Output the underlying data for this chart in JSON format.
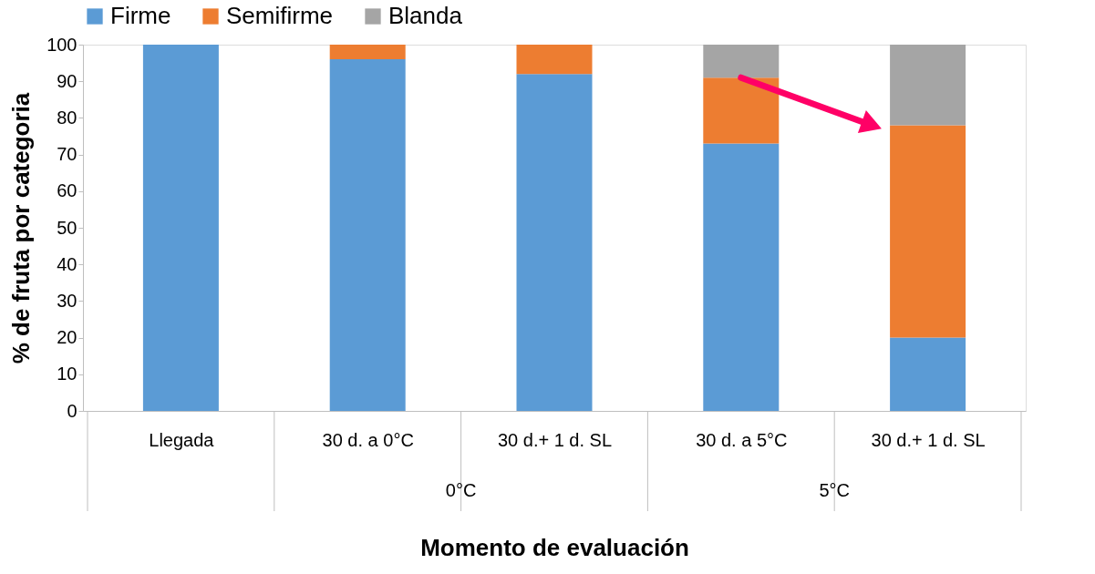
{
  "chart_data": {
    "type": "bar",
    "stacked": true,
    "xlabel": "Momento de evaluación",
    "ylabel": "% de fruta por categoria",
    "categories": [
      "Llegada",
      "30 d. a 0°C",
      "30 d.+ 1 d. SL",
      "30 d. a 5°C",
      "30 d.+ 1 d. SL"
    ],
    "series": [
      {
        "name": "Firme",
        "color": "#5b9bd5",
        "values": [
          100,
          96,
          92,
          73,
          20
        ]
      },
      {
        "name": "Semifirme",
        "color": "#ed7d31",
        "values": [
          0,
          4,
          8,
          18,
          58
        ]
      },
      {
        "name": "Blanda",
        "color": "#a5a5a5",
        "values": [
          0,
          0,
          0,
          9,
          22
        ]
      }
    ],
    "ylim": [
      0,
      100
    ],
    "yticks": [
      0,
      10,
      20,
      30,
      40,
      50,
      60,
      70,
      80,
      90,
      100
    ],
    "annotations": [
      "0°C",
      "5°C"
    ],
    "grid": false,
    "legend": "top"
  }
}
